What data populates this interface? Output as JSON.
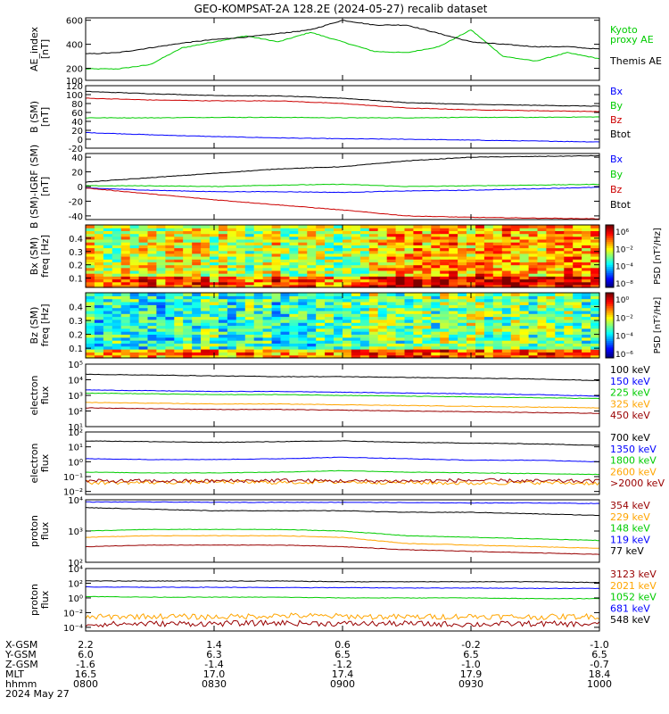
{
  "title": "GEO-KOMPSAT-2A 128.2E (2024-05-27) recalib dataset",
  "colors": {
    "black": "#000000",
    "blue": "#0000ff",
    "green": "#00cc00",
    "red": "#cc0000",
    "orange": "#ffa500",
    "darkred": "#990000",
    "dodger": "#0033ff"
  },
  "chart_data": [
    {
      "type": "line",
      "ylabel": "AE_index\n[nT]",
      "ylim": [
        100,
        620
      ],
      "yticks": [
        100,
        200,
        400,
        600
      ],
      "ytick_labels": [
        "100",
        "200",
        "400",
        "600"
      ],
      "x_hours": [
        8.0,
        8.125,
        8.25,
        8.375,
        8.5,
        8.625,
        8.75,
        8.875,
        9.0,
        9.125,
        9.25,
        9.375,
        9.5,
        9.625,
        9.75,
        9.875,
        10.0
      ],
      "series": [
        {
          "name": "Kyoto\nproxy AE",
          "color": "#00cc00",
          "values": [
            195,
            195,
            230,
            370,
            420,
            470,
            420,
            500,
            420,
            340,
            330,
            380,
            520,
            300,
            260,
            330,
            280
          ]
        },
        {
          "name": "Themis AE",
          "color": "#000000",
          "values": [
            320,
            330,
            370,
            410,
            440,
            460,
            490,
            520,
            600,
            560,
            560,
            490,
            420,
            400,
            380,
            380,
            360
          ]
        }
      ]
    },
    {
      "type": "line",
      "ylabel": "B (SM)\n[nT]",
      "ylim": [
        -20,
        120
      ],
      "yticks": [
        -20,
        0,
        20,
        40,
        60,
        80,
        100,
        120
      ],
      "ytick_labels": [
        "-20",
        "0",
        "20",
        "40",
        "60",
        "80",
        "100",
        "120"
      ],
      "x_hours": [
        8.0,
        8.25,
        8.5,
        8.75,
        9.0,
        9.25,
        9.5,
        9.75,
        10.0
      ],
      "series": [
        {
          "name": "Bx",
          "color": "#0000ff",
          "values": [
            15,
            10,
            6,
            3,
            1,
            0,
            -2,
            -4,
            -6
          ]
        },
        {
          "name": "By",
          "color": "#00cc00",
          "values": [
            48,
            48,
            49,
            49,
            48,
            48,
            49,
            49,
            50
          ]
        },
        {
          "name": "Bz",
          "color": "#cc0000",
          "values": [
            92,
            88,
            86,
            86,
            80,
            70,
            66,
            64,
            62
          ]
        },
        {
          "name": "Btot",
          "color": "#000000",
          "values": [
            107,
            102,
            98,
            97,
            92,
            82,
            78,
            76,
            74
          ]
        }
      ]
    },
    {
      "type": "line",
      "ylabel": "B (SM)-IGRF (SM)\n[nT]",
      "ylim": [
        -45,
        45
      ],
      "yticks": [
        -40,
        -20,
        0,
        20,
        40
      ],
      "ytick_labels": [
        "-40",
        "-20",
        "0",
        "20",
        "40"
      ],
      "x_hours": [
        8.0,
        8.25,
        8.5,
        8.75,
        9.0,
        9.25,
        9.5,
        9.75,
        10.0
      ],
      "series": [
        {
          "name": "Bx",
          "color": "#0000ff",
          "values": [
            -2,
            -5,
            -7,
            -7,
            -8,
            -6,
            -5,
            -3,
            -1
          ]
        },
        {
          "name": "By",
          "color": "#00cc00",
          "values": [
            1,
            1,
            0,
            2,
            3,
            0,
            1,
            2,
            3
          ]
        },
        {
          "name": "Bz",
          "color": "#cc0000",
          "values": [
            -2,
            -10,
            -18,
            -25,
            -32,
            -40,
            -42,
            -43,
            -44
          ]
        },
        {
          "name": "Btot",
          "color": "#000000",
          "values": [
            6,
            12,
            18,
            24,
            27,
            35,
            40,
            41,
            42
          ]
        }
      ]
    },
    {
      "type": "heatmap",
      "ylabel": "Bx (SM)\nfreq [Hz]",
      "ylim": [
        0.03,
        0.5
      ],
      "yticks": [
        0.1,
        0.2,
        0.3,
        0.4
      ],
      "ytick_labels": [
        "0.1",
        "0.2",
        "0.3",
        "0.4"
      ],
      "colorbar_label": "PSD [nT²/Hz]",
      "colorbar_ticks": [
        "10⁶",
        "10⁻²",
        "10⁻⁴",
        "10⁻⁸"
      ]
    },
    {
      "type": "heatmap",
      "ylabel": "Bz (SM)\nfreq [Hz]",
      "ylim": [
        0.03,
        0.5
      ],
      "yticks": [
        0.1,
        0.2,
        0.3,
        0.4
      ],
      "ytick_labels": [
        "0.1",
        "0.2",
        "0.3",
        "0.4"
      ],
      "colorbar_label": "PSD [nT²/Hz]",
      "colorbar_ticks": [
        "10⁰",
        "10⁻²",
        "10⁻⁴",
        "10⁻⁶"
      ]
    },
    {
      "type": "line",
      "log": true,
      "ylabel": "electron\nflux",
      "ylim": [
        1,
        5
      ],
      "yticks": [
        1,
        2,
        3,
        4,
        5
      ],
      "ytick_labels": [
        "10¹",
        "10²",
        "10³",
        "10⁴",
        "10⁵"
      ],
      "x_hours": [
        8.0,
        8.25,
        8.5,
        8.75,
        9.0,
        9.25,
        9.5,
        9.75,
        10.0
      ],
      "series": [
        {
          "name": "100 keV",
          "color": "#000000",
          "values": [
            4.35,
            4.3,
            4.25,
            4.2,
            4.2,
            4.15,
            4.1,
            4.05,
            3.95
          ]
        },
        {
          "name": "150 keV",
          "color": "#0000ff",
          "values": [
            3.35,
            3.3,
            3.25,
            3.25,
            3.2,
            3.15,
            3.1,
            3.05,
            2.95
          ]
        },
        {
          "name": "225 keV",
          "color": "#00cc00",
          "values": [
            3.15,
            3.1,
            3.05,
            3.05,
            3.0,
            2.95,
            2.9,
            2.85,
            2.8
          ]
        },
        {
          "name": "325 keV",
          "color": "#ffa500",
          "values": [
            2.55,
            2.5,
            2.45,
            2.45,
            2.4,
            2.35,
            2.3,
            2.25,
            2.2
          ]
        },
        {
          "name": "450 keV",
          "color": "#990000",
          "values": [
            2.2,
            2.15,
            2.1,
            2.1,
            2.05,
            2.0,
            1.95,
            1.9,
            1.85
          ]
        }
      ]
    },
    {
      "type": "line",
      "log": true,
      "ylabel": "electron\nflux",
      "ylim": [
        -2.2,
        2
      ],
      "yticks": [
        -2,
        -1,
        0,
        1,
        2
      ],
      "ytick_labels": [
        "10⁻²",
        "10⁻¹",
        "10⁰",
        "10¹",
        "10²"
      ],
      "x_hours": [
        8.0,
        8.25,
        8.5,
        8.75,
        9.0,
        9.25,
        9.5,
        9.75,
        10.0
      ],
      "series": [
        {
          "name": "700 keV",
          "color": "#000000",
          "values": [
            1.4,
            1.35,
            1.3,
            1.35,
            1.4,
            1.3,
            1.25,
            1.2,
            1.1
          ]
        },
        {
          "name": "1350 keV",
          "color": "#0000ff",
          "values": [
            0.2,
            0.15,
            0.15,
            0.2,
            0.3,
            0.2,
            0.1,
            0.1,
            0.0
          ]
        },
        {
          "name": "1800 keV",
          "color": "#00cc00",
          "values": [
            -0.7,
            -0.75,
            -0.75,
            -0.7,
            -0.6,
            -0.7,
            -0.75,
            -0.8,
            -0.85
          ]
        },
        {
          "name": "2600 keV",
          "color": "#ffa500",
          "values": [
            -1.4,
            -1.4,
            -1.35,
            -1.4,
            -1.35,
            -1.4,
            -1.45,
            -1.4,
            -1.45
          ]
        },
        {
          "name": ">2000 keV",
          "color": "#990000",
          "values": [
            -1.3,
            -1.3,
            -1.3,
            -1.25,
            -1.3,
            -1.3,
            -1.25,
            -1.3,
            -1.3
          ]
        }
      ]
    },
    {
      "type": "line",
      "log": true,
      "ylabel": "proton\nflux",
      "ylim": [
        2,
        4
      ],
      "yticks": [
        2,
        3,
        4
      ],
      "ytick_labels": [
        "10²",
        "10³",
        "10⁴"
      ],
      "x_hours": [
        8.0,
        8.25,
        8.5,
        8.75,
        9.0,
        9.25,
        9.5,
        9.75,
        10.0
      ],
      "series": [
        {
          "name": "354 keV",
          "color": "#990000",
          "values": [
            2.5,
            2.55,
            2.55,
            2.55,
            2.5,
            2.4,
            2.35,
            2.3,
            2.25
          ]
        },
        {
          "name": "229 keV",
          "color": "#ffa500",
          "values": [
            2.8,
            2.85,
            2.85,
            2.85,
            2.8,
            2.6,
            2.55,
            2.5,
            2.45
          ]
        },
        {
          "name": "148 keV",
          "color": "#00cc00",
          "values": [
            3.0,
            3.05,
            3.05,
            3.05,
            3.0,
            2.85,
            2.8,
            2.75,
            2.7
          ]
        },
        {
          "name": "119 keV",
          "color": "#0000ff",
          "values": [
            3.93,
            3.93,
            3.92,
            3.92,
            3.92,
            3.91,
            3.9,
            3.9,
            3.88
          ]
        },
        {
          "name": "77 keV",
          "color": "#000000",
          "values": [
            3.75,
            3.7,
            3.65,
            3.65,
            3.65,
            3.6,
            3.6,
            3.55,
            3.5
          ]
        }
      ]
    },
    {
      "type": "line",
      "log": true,
      "ylabel": "proton\nflux",
      "ylim": [
        -4.5,
        4
      ],
      "yticks": [
        -4,
        -2,
        0,
        2,
        4
      ],
      "ytick_labels": [
        "10⁻⁴",
        "10⁻²",
        "10⁰",
        "10²",
        "10⁴"
      ],
      "x_hours": [
        8.0,
        8.25,
        8.5,
        8.75,
        9.0,
        9.25,
        9.5,
        9.75,
        10.0
      ],
      "series": [
        {
          "name": "3123 keV",
          "color": "#990000",
          "values": [
            -3.6,
            -3.5,
            -3.5,
            -3.4,
            -3.5,
            -3.5,
            -3.6,
            -3.5,
            -3.6
          ]
        },
        {
          "name": "2021 keV",
          "color": "#ffa500",
          "values": [
            -2.6,
            -2.5,
            -2.6,
            -2.4,
            -2.5,
            -2.6,
            -2.5,
            -2.6,
            -2.5
          ]
        },
        {
          "name": "1052 keV",
          "color": "#00cc00",
          "values": [
            0.2,
            0.1,
            0.1,
            0.1,
            0.0,
            0.0,
            0.0,
            -0.1,
            -0.1
          ]
        },
        {
          "name": "681 keV",
          "color": "#0000ff",
          "values": [
            1.5,
            1.45,
            1.45,
            1.4,
            1.4,
            1.35,
            1.35,
            1.3,
            1.3
          ]
        },
        {
          "name": "548 keV",
          "color": "#000000",
          "values": [
            2.3,
            2.3,
            2.3,
            2.3,
            2.2,
            2.2,
            2.2,
            2.2,
            2.1
          ]
        }
      ]
    }
  ],
  "x_axis": {
    "range_hours": [
      8.0,
      10.0
    ],
    "row_labels": [
      "X-GSM",
      "Y-GSM",
      "Z-GSM",
      "MLT",
      "hhmm",
      "2024 May 27"
    ],
    "ticks": [
      {
        "hours": 8.0,
        "x_gsm": "2.2",
        "y_gsm": "6.0",
        "z_gsm": "-1.6",
        "mlt": "16.5",
        "hhmm": "0800"
      },
      {
        "hours": 8.5,
        "x_gsm": "1.4",
        "y_gsm": "6.3",
        "z_gsm": "-1.4",
        "mlt": "17.0",
        "hhmm": "0830"
      },
      {
        "hours": 9.0,
        "x_gsm": "0.6",
        "y_gsm": "6.5",
        "z_gsm": "-1.2",
        "mlt": "17.4",
        "hhmm": "0900"
      },
      {
        "hours": 9.5,
        "x_gsm": "-0.2",
        "y_gsm": "6.5",
        "z_gsm": "-1.0",
        "mlt": "17.9",
        "hhmm": "0930"
      },
      {
        "hours": 10.0,
        "x_gsm": "-1.0",
        "y_gsm": "6.5",
        "z_gsm": "-0.7",
        "mlt": "18.4",
        "hhmm": "1000"
      }
    ]
  }
}
